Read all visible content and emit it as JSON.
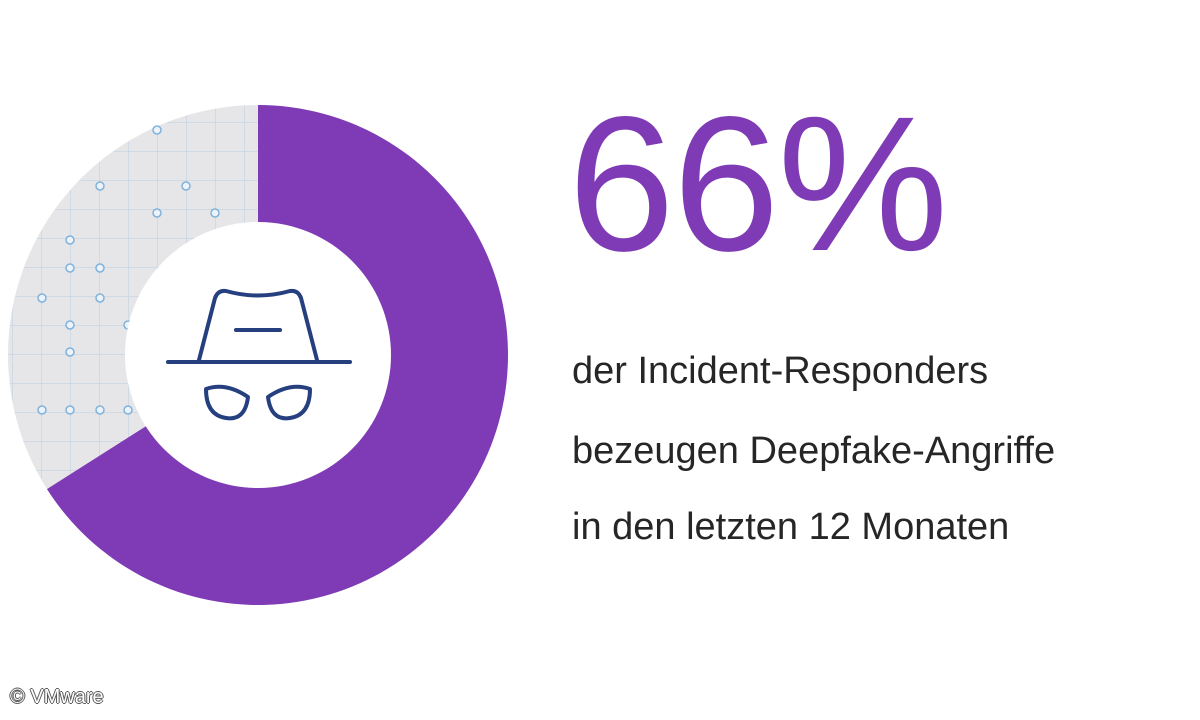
{
  "chart_data": {
    "type": "pie",
    "slices": [
      {
        "label": "",
        "value": 66,
        "color": "#7e3bb5"
      },
      {
        "label": "",
        "value": 34,
        "color": "#e6e6e8"
      }
    ],
    "highlight": "66%",
    "description_lines": [
      "der Incident-Responders",
      "bezeugen Deepfake-Angriffe",
      "in den letzten 12 Monaten"
    ]
  },
  "icon": "spy-incognito-icon",
  "copyright": "© VMware"
}
